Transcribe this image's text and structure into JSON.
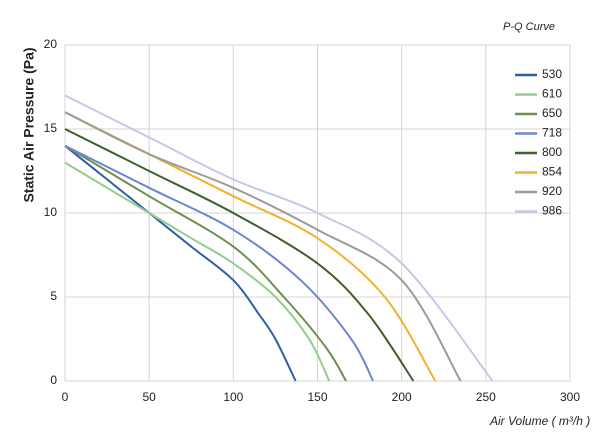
{
  "chart_data": {
    "type": "line",
    "title": "P-Q Curve",
    "x_label": "Air Volume ( m³/h )",
    "y_label": "Static Air Pressure  (Pa)",
    "xlim": [
      0,
      300
    ],
    "xticks": [
      0,
      50,
      100,
      150,
      200,
      250,
      300
    ],
    "ylim": [
      0,
      20
    ],
    "yticks": [
      0,
      5,
      10,
      15,
      20
    ],
    "grid": true,
    "legend": "upper right",
    "series": [
      {
        "name": "530",
        "color": "#2f5ea8",
        "x": [
          0,
          25,
          50,
          75,
          100,
          115,
          125,
          137
        ],
        "values": [
          14,
          12,
          10,
          8,
          6,
          4,
          2.5,
          0
        ]
      },
      {
        "name": "610",
        "color": "#93cc8c",
        "x": [
          0,
          25,
          50,
          75,
          100,
          125,
          145,
          157
        ],
        "values": [
          13,
          11.5,
          10,
          8.5,
          7,
          5,
          2.5,
          0
        ]
      },
      {
        "name": "650",
        "color": "#6f8e4f",
        "x": [
          0,
          50,
          100,
          130,
          155,
          167
        ],
        "values": [
          14,
          11,
          8,
          5,
          2,
          0
        ]
      },
      {
        "name": "718",
        "color": "#6c86cf",
        "x": [
          0,
          50,
          100,
          140,
          170,
          183
        ],
        "values": [
          14,
          11.5,
          9,
          6,
          2.5,
          0
        ]
      },
      {
        "name": "800",
        "color": "#3f5f2f",
        "x": [
          0,
          50,
          100,
          150,
          180,
          207
        ],
        "values": [
          15,
          12.5,
          10,
          7,
          4,
          0
        ]
      },
      {
        "name": "854",
        "color": "#f0b133",
        "x": [
          0,
          50,
          100,
          150,
          190,
          220
        ],
        "values": [
          16,
          13.5,
          11,
          8.5,
          5,
          0
        ]
      },
      {
        "name": "920",
        "color": "#9b9b9b",
        "x": [
          0,
          50,
          100,
          150,
          200,
          235
        ],
        "values": [
          16,
          13.5,
          11.5,
          9,
          6,
          0
        ]
      },
      {
        "name": "986",
        "color": "#c3c9e8",
        "x": [
          0,
          50,
          100,
          150,
          200,
          254
        ],
        "values": [
          17,
          14.5,
          12,
          10,
          7,
          0
        ]
      }
    ]
  }
}
